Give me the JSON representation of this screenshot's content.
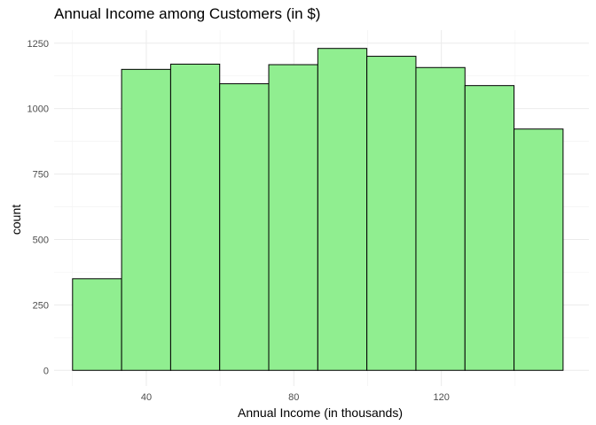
{
  "chart_data": {
    "type": "bar",
    "title": "Annual Income among Customers (in $)",
    "xlabel": "Annual Income (in thousands)",
    "ylabel": "count",
    "bar_color": "#90EE90",
    "bar_border_color": "#000000",
    "grid": true,
    "bins": [
      {
        "x_start": 20,
        "x_end": 33.3,
        "count": 350
      },
      {
        "x_start": 33.3,
        "x_end": 46.6,
        "count": 1150
      },
      {
        "x_start": 46.6,
        "x_end": 59.9,
        "count": 1170
      },
      {
        "x_start": 59.9,
        "x_end": 73.2,
        "count": 1095
      },
      {
        "x_start": 73.2,
        "x_end": 86.5,
        "count": 1168
      },
      {
        "x_start": 86.5,
        "x_end": 99.8,
        "count": 1230
      },
      {
        "x_start": 99.8,
        "x_end": 113.1,
        "count": 1200
      },
      {
        "x_start": 113.1,
        "x_end": 126.4,
        "count": 1157
      },
      {
        "x_start": 126.4,
        "x_end": 139.7,
        "count": 1088
      },
      {
        "x_start": 139.7,
        "x_end": 153,
        "count": 922
      }
    ],
    "xlim": [
      15,
      160
    ],
    "ylim": [
      -60,
      1300
    ],
    "x_ticks": [
      40,
      80,
      120
    ],
    "x_minor_ticks": [
      20,
      60,
      100,
      140
    ],
    "y_ticks": [
      0,
      250,
      500,
      750,
      1000,
      1250
    ],
    "y_minor_ticks": [
      125,
      375,
      625,
      875,
      1125
    ]
  }
}
